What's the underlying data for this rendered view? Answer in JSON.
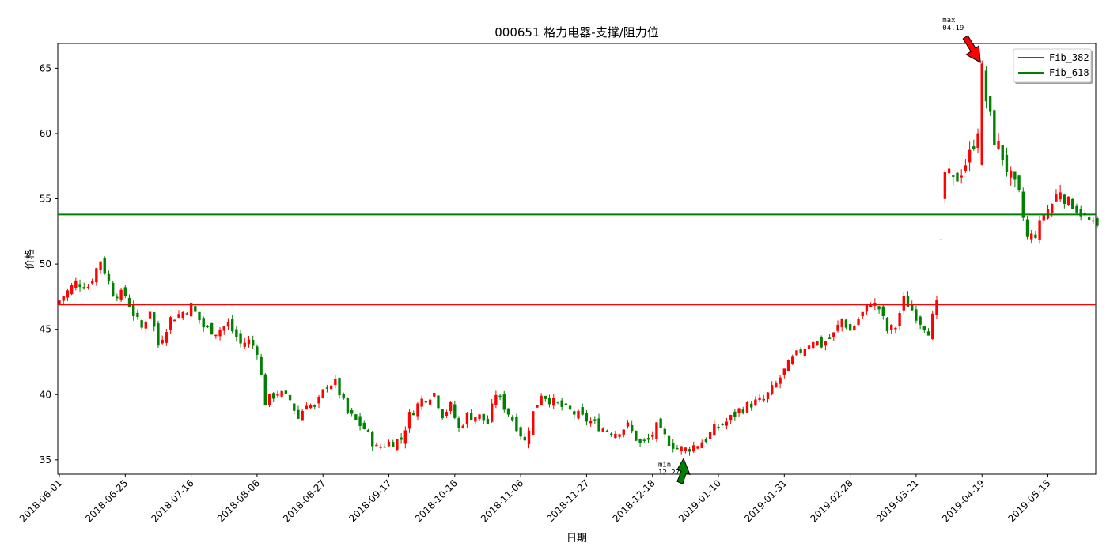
{
  "chart_data": {
    "type": "candlestick",
    "title": "000651 格力电器-支撑/阻力位",
    "xlabel": "日期",
    "ylabel": "价格",
    "ylim": [
      33.9,
      66.9
    ],
    "y_ticks": [
      35,
      40,
      45,
      50,
      55,
      60,
      65
    ],
    "x_ticks": [
      {
        "index": 0,
        "label": "2018-06-01"
      },
      {
        "index": 16,
        "label": "2018-06-25"
      },
      {
        "index": 32,
        "label": "2018-07-16"
      },
      {
        "index": 48,
        "label": "2018-08-06"
      },
      {
        "index": 64,
        "label": "2018-08-27"
      },
      {
        "index": 80,
        "label": "2018-09-17"
      },
      {
        "index": 96,
        "label": "2018-10-16"
      },
      {
        "index": 112,
        "label": "2018-11-06"
      },
      {
        "index": 128,
        "label": "2018-11-27"
      },
      {
        "index": 144,
        "label": "2018-12-18"
      },
      {
        "index": 160,
        "label": "2019-01-10"
      },
      {
        "index": 176,
        "label": "2019-01-31"
      },
      {
        "index": 192,
        "label": "2019-02-28"
      },
      {
        "index": 208,
        "label": "2019-03-21"
      },
      {
        "index": 224,
        "label": "2019-04-19"
      },
      {
        "index": 240,
        "label": "2019-05-15"
      }
    ],
    "legend": {
      "placement": "top-right",
      "entries": [
        {
          "label": "Fib_382",
          "color": "#ff0000"
        },
        {
          "label": "Fib_618",
          "color": "#008000"
        }
      ]
    },
    "hlines": [
      {
        "name": "Fib_382",
        "value": 46.9,
        "color": "#ff0000"
      },
      {
        "name": "Fib_618",
        "value": 53.8,
        "color": "#008000"
      }
    ],
    "annotations": [
      {
        "name": "max",
        "text": "max\n04.19",
        "index": 224,
        "value": 65.2,
        "color": "#ff0000",
        "direction": "down"
      },
      {
        "name": "min",
        "text": "min\n12.27",
        "index": 150,
        "value": 35.7,
        "color": "#008000",
        "direction": "up"
      }
    ],
    "up_color": "#ff0000",
    "down_color": "#008000",
    "x_range": [
      0,
      252
    ],
    "close_anchors": [
      [
        0,
        47.2
      ],
      [
        4,
        48.6
      ],
      [
        7,
        48.3
      ],
      [
        10,
        50.3
      ],
      [
        13,
        47.8
      ],
      [
        16,
        47.6
      ],
      [
        18,
        46.2
      ],
      [
        20,
        45.1
      ],
      [
        22,
        46.5
      ],
      [
        24,
        43.8
      ],
      [
        27,
        45.8
      ],
      [
        30,
        46.3
      ],
      [
        32,
        46.8
      ],
      [
        35,
        45.2
      ],
      [
        38,
        44.8
      ],
      [
        41,
        45.4
      ],
      [
        44,
        43.9
      ],
      [
        46,
        44.1
      ],
      [
        48,
        43.4
      ],
      [
        50,
        39.4
      ],
      [
        53,
        40.2
      ],
      [
        56,
        39.6
      ],
      [
        58,
        38.2
      ],
      [
        60,
        39.4
      ],
      [
        62,
        38.9
      ],
      [
        65,
        40.8
      ],
      [
        67,
        40.9
      ],
      [
        70,
        38.6
      ],
      [
        74,
        37.4
      ],
      [
        77,
        35.9
      ],
      [
        80,
        36.3
      ],
      [
        83,
        36.6
      ],
      [
        85,
        38.4
      ],
      [
        88,
        39.6
      ],
      [
        91,
        40.1
      ],
      [
        93,
        38.5
      ],
      [
        95,
        39.1
      ],
      [
        97,
        37.4
      ],
      [
        99,
        38.4
      ],
      [
        102,
        38.3
      ],
      [
        104,
        37.8
      ],
      [
        106,
        40.1
      ],
      [
        109,
        38.6
      ],
      [
        111,
        37.6
      ],
      [
        113,
        36.4
      ],
      [
        115,
        38.6
      ],
      [
        117,
        40.1
      ],
      [
        120,
        39.4
      ],
      [
        123,
        38.9
      ],
      [
        126,
        38.4
      ],
      [
        129,
        37.9
      ],
      [
        132,
        37.4
      ],
      [
        135,
        37.1
      ],
      [
        138,
        37.6
      ],
      [
        141,
        36.2
      ],
      [
        143,
        36.5
      ],
      [
        145,
        37.5
      ],
      [
        148,
        36.4
      ],
      [
        150,
        35.9
      ],
      [
        152,
        35.8
      ],
      [
        155,
        36.2
      ],
      [
        157,
        36.6
      ],
      [
        159,
        37.4
      ],
      [
        162,
        37.9
      ],
      [
        165,
        38.8
      ],
      [
        168,
        39.3
      ],
      [
        171,
        39.6
      ],
      [
        174,
        40.8
      ],
      [
        177,
        42.3
      ],
      [
        180,
        43.4
      ],
      [
        183,
        44.2
      ],
      [
        185,
        43.8
      ],
      [
        188,
        44.6
      ],
      [
        190,
        45.8
      ],
      [
        192,
        44.9
      ],
      [
        195,
        46.2
      ],
      [
        197,
        47.1
      ],
      [
        199,
        46.6
      ],
      [
        201,
        44.9
      ],
      [
        203,
        45.2
      ],
      [
        205,
        47.3
      ],
      [
        207,
        46.5
      ],
      [
        209,
        45.6
      ],
      [
        211,
        44.9
      ],
      [
        213,
        46.9
      ],
      [
        215,
        57.0
      ],
      [
        217,
        56.2
      ],
      [
        219,
        57.2
      ],
      [
        221,
        58.3
      ],
      [
        223,
        60.5
      ],
      [
        224,
        64.8
      ],
      [
        225,
        62.6
      ],
      [
        227,
        59.6
      ],
      [
        229,
        58.3
      ],
      [
        231,
        56.5
      ],
      [
        233,
        55.1
      ],
      [
        235,
        52.0
      ],
      [
        237,
        52.3
      ],
      [
        239,
        53.8
      ],
      [
        241,
        54.6
      ],
      [
        243,
        55.8
      ],
      [
        245,
        54.8
      ],
      [
        247,
        54.2
      ],
      [
        249,
        53.6
      ],
      [
        251,
        53.0
      ],
      [
        252,
        52.8
      ]
    ],
    "gap": {
      "after_index": 213,
      "marker_index": 214,
      "marker_value": 51.9
    }
  }
}
